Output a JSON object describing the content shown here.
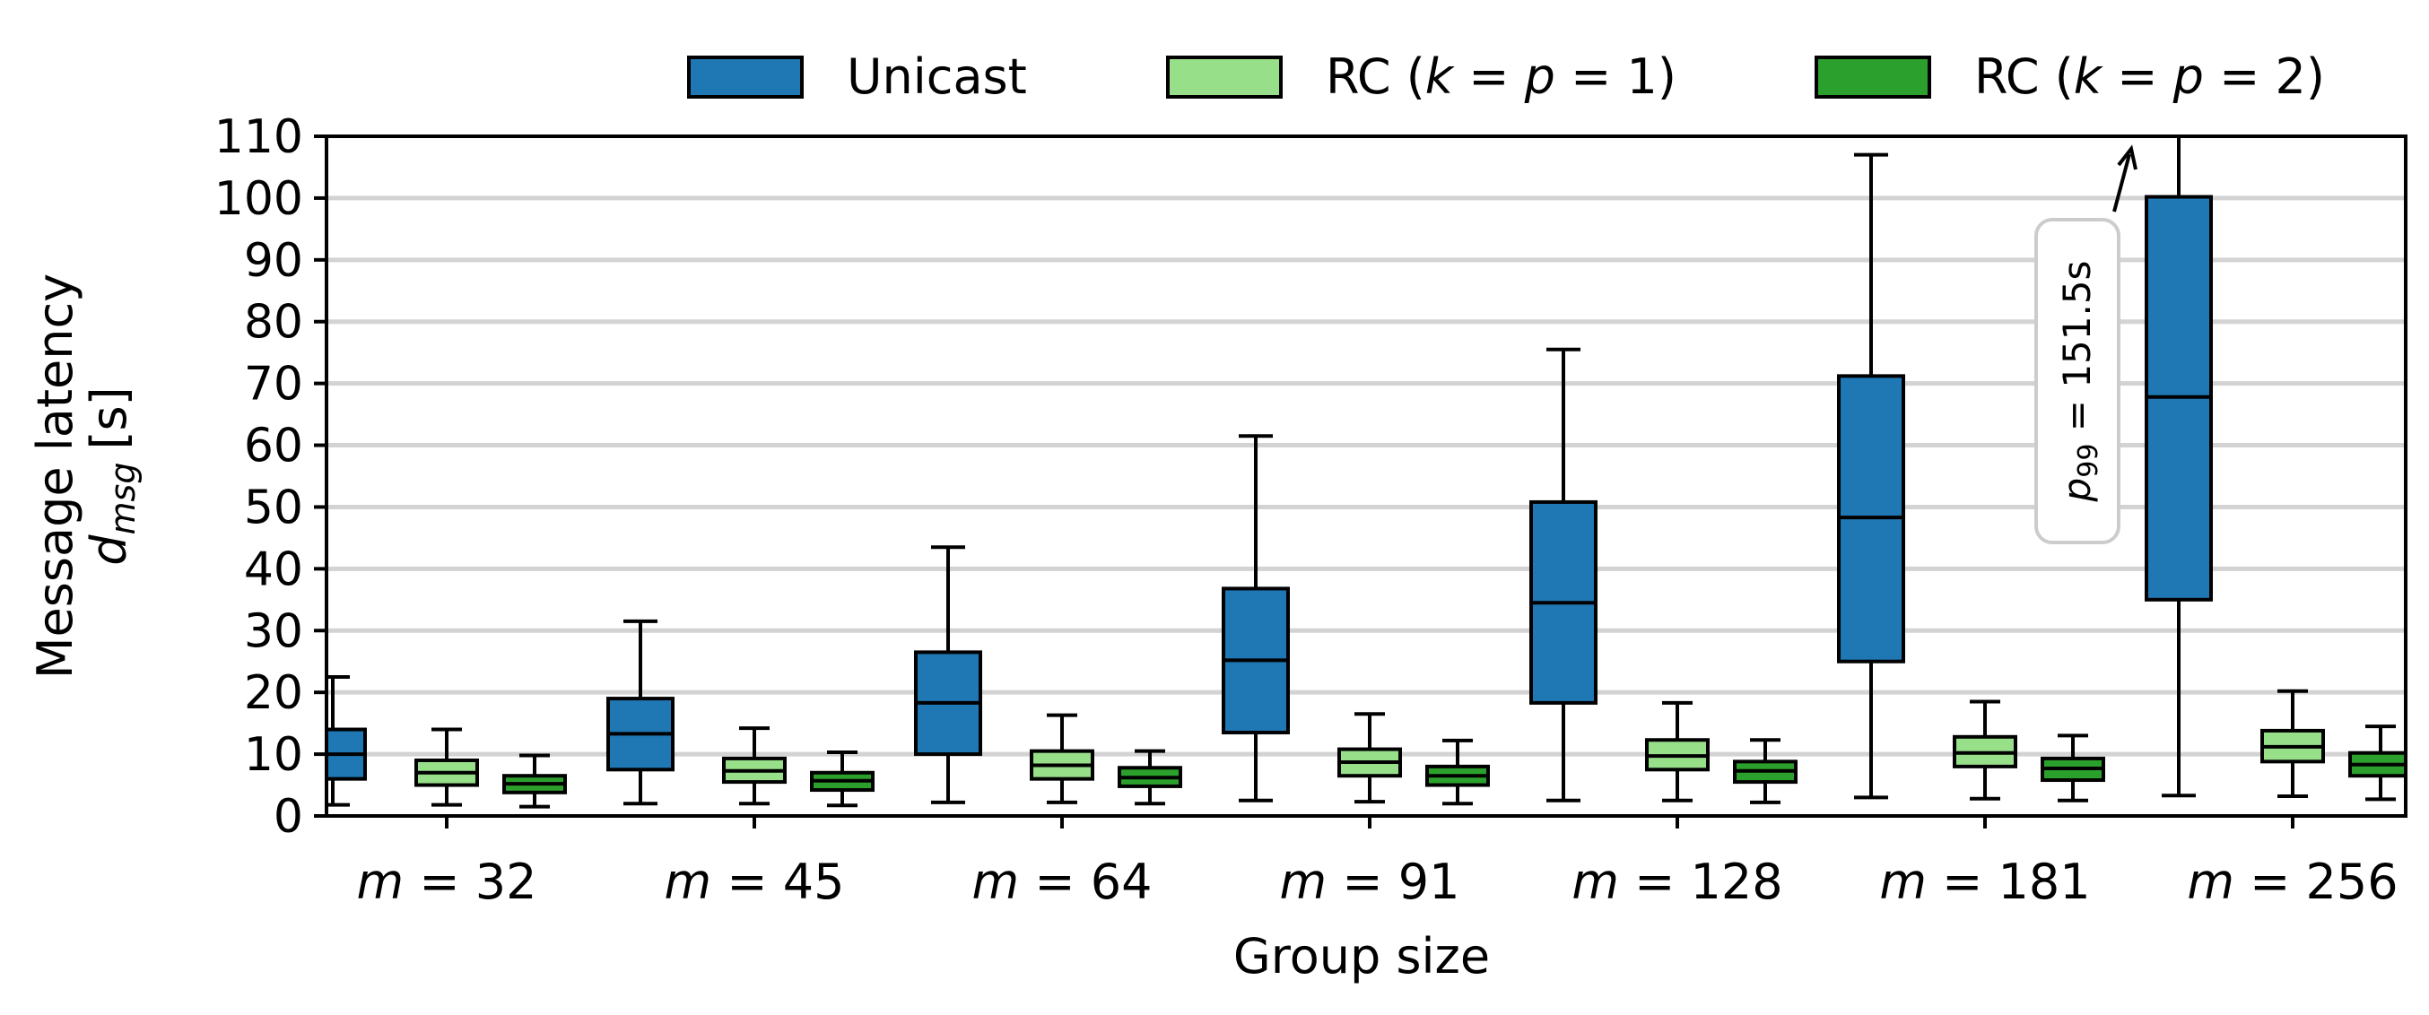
{
  "chart_data": {
    "type": "box",
    "xlabel": "Group size",
    "ylabel_line1": "Message latency",
    "ylabel_line2": "d",
    "ylabel_sub": "msg",
    "ylabel_unit": "[s]",
    "ylim": [
      0,
      110
    ],
    "yticks": [
      0,
      10,
      20,
      30,
      40,
      50,
      60,
      70,
      80,
      90,
      100,
      110
    ],
    "grid": "horizontal",
    "legend_position": "top",
    "categories": [
      "m = 32",
      "m = 45",
      "m = 64",
      "m = 91",
      "m = 128",
      "m = 181",
      "m = 256"
    ],
    "series": [
      {
        "name": "Unicast",
        "color": "#1f77b4",
        "boxes": [
          {
            "whislo": 1.8,
            "q1": 6,
            "med": 10,
            "q3": 14,
            "whishi": 22.5
          },
          {
            "whislo": 2,
            "q1": 7.5,
            "med": 13.3,
            "q3": 19,
            "whishi": 31.5
          },
          {
            "whislo": 2.2,
            "q1": 10,
            "med": 18.3,
            "q3": 26.5,
            "whishi": 43.5
          },
          {
            "whislo": 2.5,
            "q1": 13.5,
            "med": 25.2,
            "q3": 36.8,
            "whishi": 61.5
          },
          {
            "whislo": 2.5,
            "q1": 18.3,
            "med": 34.5,
            "q3": 50.8,
            "whishi": 75.5
          },
          {
            "whislo": 3,
            "q1": 25,
            "med": 48.3,
            "q3": 71.2,
            "whishi": 107
          },
          {
            "whislo": 3.3,
            "q1": 35,
            "med": 67.8,
            "q3": 100.2,
            "whishi": 151.5
          }
        ]
      },
      {
        "name": "RC (k = p = 1)",
        "color": "#98df8a",
        "boxes": [
          {
            "whislo": 1.8,
            "q1": 5,
            "med": 7,
            "q3": 9,
            "whishi": 14
          },
          {
            "whislo": 2,
            "q1": 5.5,
            "med": 7.3,
            "q3": 9.3,
            "whishi": 14.2
          },
          {
            "whislo": 2.2,
            "q1": 6,
            "med": 8.2,
            "q3": 10.5,
            "whishi": 16.3
          },
          {
            "whislo": 2.3,
            "q1": 6.5,
            "med": 8.7,
            "q3": 10.8,
            "whishi": 16.5
          },
          {
            "whislo": 2.5,
            "q1": 7.5,
            "med": 9.7,
            "q3": 12.3,
            "whishi": 18.3
          },
          {
            "whislo": 2.8,
            "q1": 8,
            "med": 10.2,
            "q3": 12.8,
            "whishi": 18.5
          },
          {
            "whislo": 3.2,
            "q1": 8.8,
            "med": 11.2,
            "q3": 13.8,
            "whishi": 20.2
          }
        ]
      },
      {
        "name": "RC (k = p = 2)",
        "color": "#2ca02c",
        "boxes": [
          {
            "whislo": 1.5,
            "q1": 3.8,
            "med": 5.2,
            "q3": 6.5,
            "whishi": 9.8
          },
          {
            "whislo": 1.7,
            "q1": 4.2,
            "med": 5.7,
            "q3": 7,
            "whishi": 10.3
          },
          {
            "whislo": 2,
            "q1": 4.8,
            "med": 6.2,
            "q3": 7.8,
            "whishi": 10.5
          },
          {
            "whislo": 2,
            "q1": 5,
            "med": 6.5,
            "q3": 8,
            "whishi": 12.2
          },
          {
            "whislo": 2.2,
            "q1": 5.5,
            "med": 7.3,
            "q3": 8.8,
            "whishi": 12.3
          },
          {
            "whislo": 2.5,
            "q1": 5.8,
            "med": 7.7,
            "q3": 9.3,
            "whishi": 13
          },
          {
            "whislo": 2.7,
            "q1": 6.5,
            "med": 8.3,
            "q3": 10.2,
            "whishi": 14.5
          }
        ]
      }
    ],
    "annotation": {
      "text_main": "p",
      "text_sub": "99",
      "text_rest": " = 151.5s",
      "points_to": {
        "category": "m = 256",
        "series": "Unicast",
        "value": 151.5
      }
    }
  }
}
